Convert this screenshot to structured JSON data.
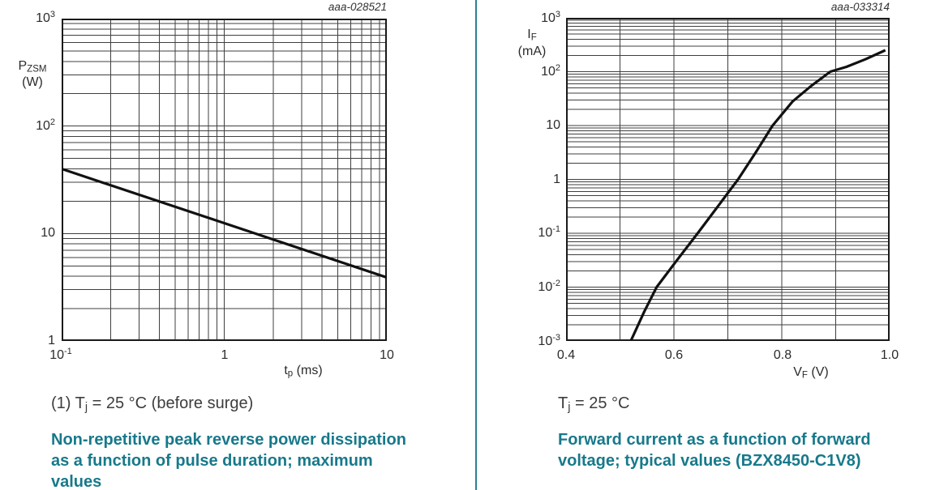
{
  "colors": {
    "teal_accent": "#17798b",
    "divider": "#2a8191",
    "grid": "#3f3f3f",
    "curve": "#111111",
    "text": "#2b2b2b"
  },
  "left_figure": {
    "figure_id": "aaa-028521",
    "y_axis": {
      "label_main": "P",
      "label_sub": "ZSM",
      "label_unit": "(W)",
      "ticks": [
        "10^3",
        "10^2",
        "10",
        "1"
      ]
    },
    "x_axis": {
      "label_main": "t",
      "label_sub": "p",
      "label_unit": "(ms)",
      "ticks": [
        "10^-1",
        "1",
        "10"
      ]
    },
    "note": {
      "pre": "(1) T",
      "sub": "j",
      "post": " = 25 °C (before surge)"
    },
    "caption": {
      "lines": [
        "Non-repetitive peak reverse power dissipation",
        "as a function of pulse duration; maximum",
        "values"
      ]
    }
  },
  "right_figure": {
    "figure_id": "aaa-033314",
    "y_axis": {
      "label_main": "I",
      "label_sub": "F",
      "label_unit": "(mA)",
      "ticks": [
        "10^3",
        "10^2",
        "10",
        "1",
        "10^-1",
        "10^-2",
        "10^-3"
      ]
    },
    "x_axis": {
      "label_main": "V",
      "label_sub": "F",
      "label_unit": "(V)",
      "ticks": [
        "0.4",
        "0.6",
        "0.8",
        "1.0"
      ]
    },
    "note": {
      "pre": "T",
      "sub": "j",
      "post": " = 25 °C"
    },
    "caption": {
      "lines": [
        "Forward current as a function of forward",
        "voltage; typical values (BZX8450-C1V8)"
      ]
    }
  },
  "chart_data": [
    {
      "type": "line",
      "figure_id": "aaa-028521",
      "title": "Non-repetitive peak reverse power dissipation as a function of pulse duration; maximum values",
      "condition": "(1) Tj = 25 °C (before surge)",
      "xlabel": "tp (ms)",
      "ylabel": "PZSM (W)",
      "x_scale": "log",
      "y_scale": "log",
      "xlim": [
        0.1,
        10
      ],
      "ylim": [
        1,
        1000
      ],
      "x_tick_labels": [
        "10^-1",
        "1",
        "10"
      ],
      "y_tick_labels": [
        "10^3",
        "10^2",
        "10",
        "1"
      ],
      "grid": "log major and minor gridlines, both axes",
      "legend": "none",
      "series": [
        {
          "name": "PZSM maximum",
          "points": [
            [
              0.1,
              40
            ],
            [
              1,
              12.5
            ],
            [
              10,
              3.9
            ]
          ]
        }
      ]
    },
    {
      "type": "line",
      "figure_id": "aaa-033314",
      "title": "Forward current as a function of forward voltage; typical values (BZX8450-C1V8)",
      "condition": "Tj = 25 °C",
      "xlabel": "VF (V)",
      "ylabel": "IF (mA)",
      "x_scale": "linear",
      "y_scale": "log",
      "xlim": [
        0.4,
        1.0
      ],
      "x_tick_step": 0.1,
      "ylim": [
        0.001,
        1000
      ],
      "x_tick_labels": [
        "0.4",
        "0.6",
        "0.8",
        "1.0"
      ],
      "y_tick_labels": [
        "10^3",
        "10^2",
        "10",
        "1",
        "10^-1",
        "10^-2",
        "10^-3"
      ],
      "grid": "linear x gridlines every 0.1 V; log major and minor y gridlines",
      "legend": "none",
      "series": [
        {
          "name": "IF typical",
          "points": [
            [
              0.52,
              0.001
            ],
            [
              0.545,
              0.0035
            ],
            [
              0.568,
              0.01
            ],
            [
              0.606,
              0.032
            ],
            [
              0.644,
              0.1
            ],
            [
              0.682,
              0.32
            ],
            [
              0.719,
              1
            ],
            [
              0.752,
              3.2
            ],
            [
              0.783,
              10
            ],
            [
              0.82,
              28
            ],
            [
              0.855,
              55
            ],
            [
              0.89,
              100
            ],
            [
              0.92,
              123
            ],
            [
              0.955,
              170
            ],
            [
              0.992,
              250
            ]
          ]
        }
      ]
    }
  ]
}
